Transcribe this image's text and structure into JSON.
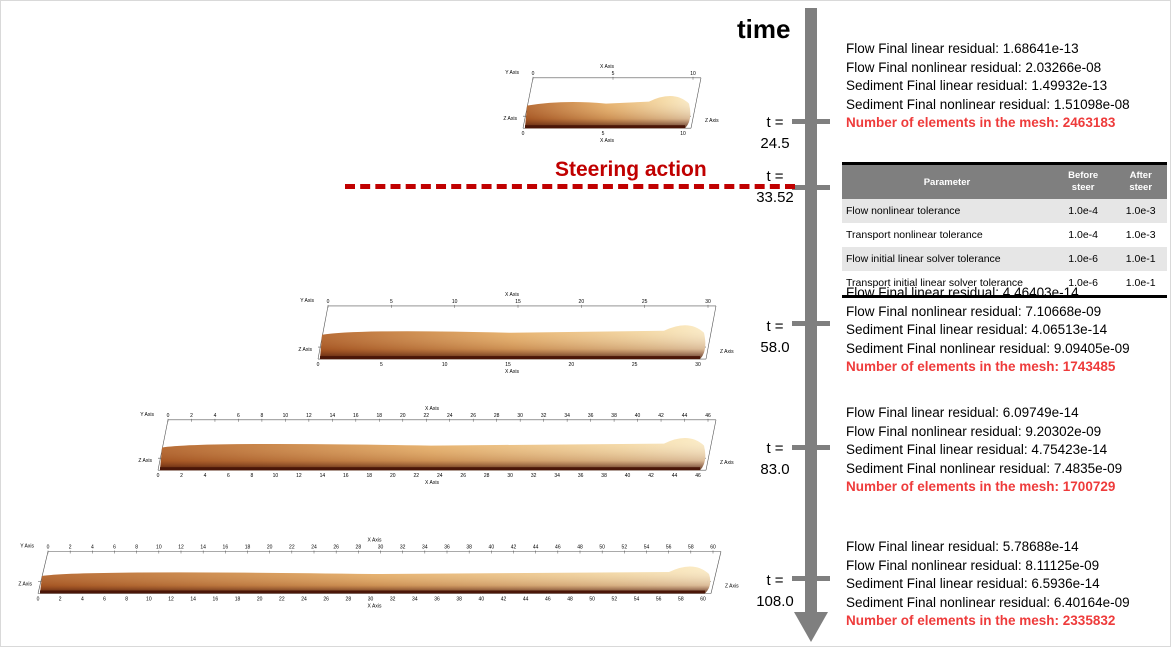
{
  "time_title": "time",
  "steering": {
    "label": "Steering action"
  },
  "timesteps": [
    {
      "t_label": "t =",
      "t_value": "24.5"
    },
    {
      "t_label": "t =",
      "t_value": "33.52"
    },
    {
      "t_label": "t =",
      "t_value": "58.0"
    },
    {
      "t_label": "t =",
      "t_value": "83.0"
    },
    {
      "t_label": "t =",
      "t_value": "108.0"
    }
  ],
  "residuals": [
    {
      "flow_linear": "Flow Final linear residual: 1.68641e-13",
      "flow_nonlinear": "Flow Final nonlinear residual: 2.03266e-08",
      "sed_linear": "Sediment Final linear residual: 1.49932e-13",
      "sed_nonlinear": "Sediment Final nonlinear residual: 1.51098e-08",
      "mesh": "Number of elements in the mesh: 2463183"
    },
    {
      "flow_linear": "Flow Final linear residual: 4.46403e-14",
      "flow_nonlinear": "Flow Final nonlinear residual: 7.10668e-09",
      "sed_linear": "Sediment Final linear residual: 4.06513e-14",
      "sed_nonlinear": "Sediment Final nonlinear residual: 9.09405e-09",
      "mesh": "Number of elements in the mesh: 1743485"
    },
    {
      "flow_linear": "Flow Final linear residual: 6.09749e-14",
      "flow_nonlinear": "Flow Final nonlinear residual: 9.20302e-09",
      "sed_linear": "Sediment Final linear residual: 4.75423e-14",
      "sed_nonlinear": "Sediment Final nonlinear residual: 7.4835e-09",
      "mesh": "Number of elements in the mesh: 1700729"
    },
    {
      "flow_linear": "Flow Final linear residual: 5.78688e-14",
      "flow_nonlinear": "Flow Final nonlinear residual: 8.11125e-09",
      "sed_linear": "Sediment Final linear residual: 6.5936e-14",
      "sed_nonlinear": "Sediment Final nonlinear residual: 6.40164e-09",
      "mesh": "Number of elements in the mesh: 2335832"
    }
  ],
  "param_table": {
    "headers": {
      "parameter": "Parameter",
      "before": "Before steer",
      "after": "After steer"
    },
    "rows": [
      {
        "name": "Flow nonlinear tolerance",
        "before": "1.0e-4",
        "after": "1.0e-3"
      },
      {
        "name": "Transport nonlinear tolerance",
        "before": "1.0e-4",
        "after": "1.0e-3"
      },
      {
        "name": "Flow initial linear solver tolerance",
        "before": "1.0e-6",
        "after": "1.0e-1"
      },
      {
        "name": "Transport initial linear solver tolerance",
        "before": "1.0e-6",
        "after": "1.0e-1"
      }
    ]
  },
  "flumes": [
    {
      "x_axis_label": "X Axis",
      "y_axis_label": "Y Axis",
      "z_axis_label": "Z Axis",
      "max_tick": 10,
      "step": 5
    },
    {
      "x_axis_label": "X Axis",
      "y_axis_label": "Y Axis",
      "z_axis_label": "Z Axis",
      "max_tick": 30,
      "step": 5
    },
    {
      "x_axis_label": "X Axis",
      "y_axis_label": "Y Axis",
      "z_axis_label": "Z Axis",
      "max_tick": 46,
      "step": 2
    },
    {
      "x_axis_label": "X Axis",
      "y_axis_label": "Y Axis",
      "z_axis_label": "Z Axis",
      "max_tick": 60,
      "step": 2
    }
  ],
  "colors": {
    "time_axis": "#7f7f7f",
    "steering": "#c00000",
    "mesh_text": "#ee3b3b",
    "table_header": "#7f7f7f"
  }
}
